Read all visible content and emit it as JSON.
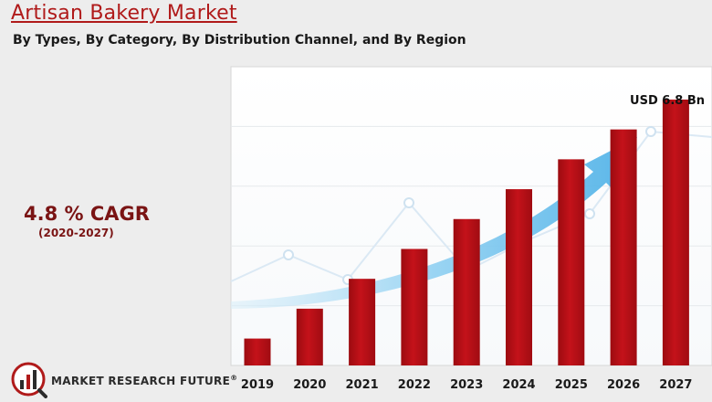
{
  "chart_data": {
    "type": "bar",
    "title": "Artisan Bakery Market",
    "subtitle": "By Types, By Category, By Distribution Channel, and By Region",
    "categories": [
      "2019",
      "2020",
      "2021",
      "2022",
      "2023",
      "2024",
      "2025",
      "2026",
      "2027"
    ],
    "values": [
      0.9,
      1.9,
      2.9,
      3.9,
      4.9,
      5.9,
      6.9,
      7.9,
      8.9
    ],
    "ylim": [
      0,
      10
    ],
    "bar_color": "#b50d12",
    "annotation": "USD 6.8 Bn",
    "xlabel": "",
    "ylabel": "",
    "grid": true
  },
  "cagr": {
    "value": "4.8 % CAGR",
    "period": "(2020-2027)"
  },
  "brand": {
    "name": "MARKET RESEARCH FUTURE",
    "reg": "®"
  },
  "colors": {
    "title": "#b01a1a",
    "cagr": "#7a1414",
    "arrow": "#4fb3ea"
  }
}
